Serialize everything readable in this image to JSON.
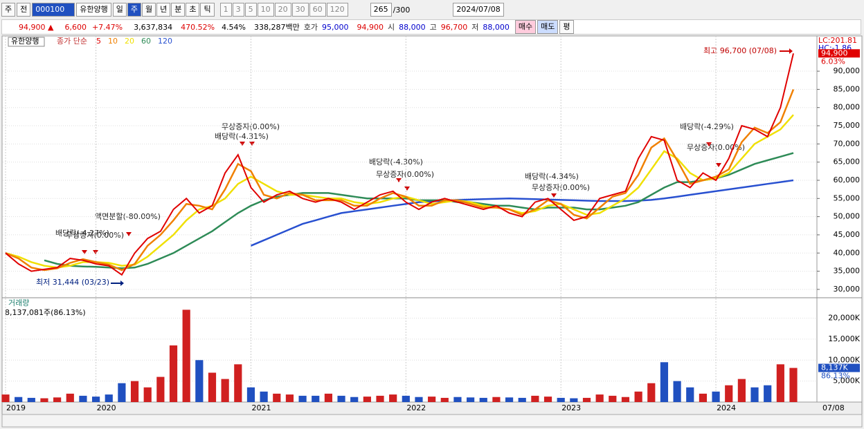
{
  "toolbar": {
    "market": "주",
    "prev": "전",
    "code": "000100",
    "name": "유한양행",
    "periods": [
      "일",
      "주",
      "월",
      "년",
      "분",
      "초",
      "틱"
    ],
    "ranges": [
      "1",
      "3",
      "5",
      "10",
      "20",
      "30",
      "60",
      "120"
    ],
    "count": "265",
    "max": "/300",
    "date": "2024/07/08"
  },
  "quote": {
    "price": "94,900 ▲",
    "change": "6,600",
    "rate": "+7.47%",
    "volume": "3,637,834",
    "volume_rate": "470.52%",
    "turnover": "4.54%",
    "amount": "338,287백만",
    "ask_label": "호가",
    "ask": "95,000",
    "bid": "94,900",
    "open_label": "시",
    "open": "88,000",
    "high_label": "고",
    "high": "96,700",
    "low_label": "저",
    "low": "88,000",
    "buy": "매수",
    "sell": "매도",
    "avg": "평"
  },
  "chart_data": [
    {
      "type": "line",
      "title": "유한양행",
      "legend_prefix": "종가 단순",
      "lc": "LC:201.81",
      "hc": "HC:-1.86",
      "last_price_label": "94,900",
      "change_label": "6.03%",
      "categories": [
        "2019",
        null,
        null,
        null,
        null,
        null,
        null,
        "2020",
        null,
        null,
        null,
        null,
        null,
        null,
        null,
        null,
        null,
        null,
        null,
        "2021",
        null,
        null,
        null,
        null,
        null,
        null,
        null,
        null,
        null,
        null,
        null,
        "2022",
        null,
        null,
        null,
        null,
        null,
        null,
        null,
        null,
        null,
        null,
        null,
        "2023",
        null,
        null,
        null,
        null,
        null,
        null,
        null,
        null,
        null,
        null,
        null,
        "2024",
        null,
        null,
        null,
        null,
        null,
        "07/08"
      ],
      "ylim": [
        27700,
        99700
      ],
      "yticks": [
        {
          "value": 30000,
          "label": "30,000"
        },
        {
          "value": 35000,
          "label": "35,000"
        },
        {
          "value": 40000,
          "label": "40,000"
        },
        {
          "value": 45000,
          "label": "45,000"
        },
        {
          "value": 50000,
          "label": "50,000"
        },
        {
          "value": 55000,
          "label": "55,000"
        },
        {
          "value": 60000,
          "label": "60,000"
        },
        {
          "value": 65000,
          "label": "65,000"
        },
        {
          "value": 70000,
          "label": "70,000"
        },
        {
          "value": 75000,
          "label": "75,000"
        },
        {
          "value": 80000,
          "label": "80,000"
        },
        {
          "value": 85000,
          "label": "85,000"
        },
        {
          "value": 90000,
          "label": "90,000"
        }
      ],
      "grid": true,
      "series": [
        {
          "name": "5",
          "color": "#e00000",
          "values": [
            40000,
            37000,
            35000,
            35500,
            36000,
            38500,
            38000,
            37000,
            36500,
            34000,
            40000,
            44000,
            46000,
            52000,
            55000,
            51000,
            53000,
            62000,
            67000,
            58000,
            54000,
            56000,
            57000,
            55000,
            54000,
            55000,
            54000,
            52000,
            54000,
            56000,
            57000,
            54000,
            52000,
            54000,
            55000,
            54000,
            53000,
            52000,
            53000,
            51000,
            50000,
            54000,
            55000,
            52000,
            49000,
            50000,
            55000,
            56000,
            57000,
            66000,
            72000,
            71000,
            60000,
            58000,
            62000,
            60000,
            66000,
            75000,
            74000,
            72000,
            80000,
            94900
          ]
        },
        {
          "name": "10",
          "color": "#f08000",
          "values": [
            40000,
            38500,
            36000,
            35300,
            35800,
            37300,
            38300,
            37500,
            36800,
            35300,
            37000,
            42000,
            45000,
            49000,
            53500,
            53000,
            52000,
            57500,
            64500,
            62500,
            56000,
            55000,
            56500,
            56000,
            54500,
            54500,
            54500,
            53000,
            53000,
            55000,
            56500,
            55500,
            53000,
            53000,
            54500,
            54500,
            53500,
            52500,
            52500,
            52000,
            50500,
            52000,
            54500,
            53500,
            50500,
            49500,
            52500,
            55500,
            56500,
            61500,
            69000,
            71500,
            65500,
            59000,
            60000,
            61000,
            63000,
            70500,
            74500,
            73000,
            76000,
            85000
          ]
        },
        {
          "name": "20",
          "color": "#f0e000",
          "values": [
            40000,
            39000,
            37500,
            36500,
            36000,
            36500,
            37500,
            37500,
            37300,
            36500,
            36800,
            39000,
            42000,
            45000,
            49000,
            52000,
            53000,
            55000,
            59000,
            61000,
            59000,
            57000,
            56000,
            56000,
            55500,
            55000,
            55000,
            54000,
            53500,
            54000,
            55000,
            55500,
            54500,
            53500,
            54000,
            54500,
            54000,
            53000,
            52500,
            52000,
            51000,
            51500,
            53000,
            53500,
            52000,
            50500,
            51000,
            53000,
            55000,
            58000,
            63000,
            68000,
            66000,
            62000,
            60000,
            60500,
            62000,
            66000,
            70000,
            72000,
            74000,
            78000
          ]
        },
        {
          "name": "60",
          "color": "#2e8b57",
          "values": [
            null,
            null,
            null,
            38000,
            37000,
            36500,
            36300,
            36200,
            36000,
            35800,
            36000,
            37000,
            38500,
            40000,
            42000,
            44000,
            46000,
            48500,
            51000,
            53000,
            54500,
            55500,
            56000,
            56500,
            56500,
            56500,
            56000,
            55500,
            55000,
            55000,
            55000,
            55000,
            54500,
            54500,
            54500,
            54000,
            54000,
            53500,
            53000,
            53000,
            52500,
            52000,
            52500,
            52500,
            52500,
            52000,
            52000,
            52500,
            53000,
            54000,
            56000,
            58000,
            59500,
            59500,
            60000,
            60500,
            61500,
            63000,
            64500,
            65500,
            66500,
            67500
          ]
        },
        {
          "name": "120",
          "color": "#2850d0",
          "values": [
            null,
            null,
            null,
            null,
            null,
            null,
            null,
            null,
            null,
            null,
            null,
            null,
            null,
            null,
            null,
            null,
            null,
            null,
            null,
            42000,
            43500,
            45000,
            46500,
            48000,
            49000,
            50000,
            51000,
            51500,
            52000,
            52500,
            53000,
            53500,
            54000,
            54200,
            54400,
            54600,
            54700,
            54800,
            54900,
            55000,
            54900,
            54800,
            54700,
            54600,
            54500,
            54400,
            54300,
            54300,
            54300,
            54400,
            54600,
            55000,
            55500,
            56000,
            56500,
            57000,
            57500,
            58000,
            58500,
            59000,
            59500,
            60000
          ]
        }
      ],
      "annotations": [
        "최고 96,700 (07/08)",
        "최저 31,444 (03/23)",
        "무상증자(0.00%)",
        "배당락(-4.31%)",
        "액면분할(-80.00%)",
        "배당락(-4.27%)",
        "무상증자(0.00%)",
        "배당락(-4.30%)",
        "무상증자(0.00%)",
        "배당락(-4.34%)",
        "무상증자(0.00%)",
        "배당락(-4.29%)",
        "무상증자(0.00%)"
      ]
    },
    {
      "type": "bar",
      "title": "거래량",
      "subtitle": "8,137,081주(86.13%)",
      "last_label": "8,137K",
      "ratio_label": "86.13%",
      "up_color": "#d02020",
      "down_color": "#2050c0",
      "ylim": [
        0,
        24700
      ],
      "yticks": [
        {
          "value": 5000,
          "label": "5,000K"
        },
        {
          "value": 10000,
          "label": "10,000K"
        },
        {
          "value": 15000,
          "label": "15,000K"
        },
        {
          "value": 20000,
          "label": "20,000K"
        }
      ],
      "values": [
        1800,
        1200,
        1000,
        900,
        1100,
        2000,
        1500,
        1300,
        1800,
        4500,
        5000,
        3500,
        6000,
        13500,
        22000,
        10000,
        7000,
        5500,
        9000,
        3500,
        2500,
        2000,
        1800,
        1500,
        1500,
        2000,
        1500,
        1200,
        1300,
        1500,
        1800,
        1500,
        1200,
        1300,
        1000,
        1200,
        1100,
        1000,
        1200,
        1100,
        1000,
        1500,
        1300,
        1000,
        900,
        1000,
        1800,
        1500,
        1200,
        2500,
        4500,
        9500,
        5000,
        3500,
        2000,
        2500,
        4000,
        5500,
        3500,
        4000,
        9000,
        8137
      ]
    }
  ]
}
